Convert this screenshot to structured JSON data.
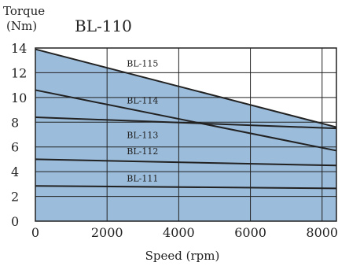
{
  "chart_data": {
    "type": "line",
    "title": "BL-110",
    "ylabel_line1": "Torque",
    "ylabel_line2": "(Nm)",
    "xlabel": "Speed (rpm)",
    "xlim": [
      0,
      8400
    ],
    "ylim": [
      0,
      14
    ],
    "x_ticks": [
      0,
      2000,
      4000,
      6000,
      8000
    ],
    "y_ticks": [
      0,
      2,
      4,
      6,
      8,
      10,
      12,
      14
    ],
    "grid": true,
    "fill_color": "#9bbcdb",
    "line_color": "#222222",
    "series": [
      {
        "name": "BL-115",
        "x": [
          0,
          8400
        ],
        "y": [
          13.9,
          7.6
        ],
        "label_at": [
          2550,
          12.5
        ]
      },
      {
        "name": "BL-114",
        "x": [
          0,
          8400
        ],
        "y": [
          10.6,
          5.7
        ],
        "label_at": [
          2550,
          9.5
        ]
      },
      {
        "name": "BL-113",
        "x": [
          0,
          8400
        ],
        "y": [
          8.4,
          7.5
        ],
        "label_at": [
          2550,
          6.7
        ]
      },
      {
        "name": "BL-112",
        "x": [
          0,
          8400
        ],
        "y": [
          5.0,
          4.5
        ],
        "label_at": [
          2550,
          5.4
        ]
      },
      {
        "name": "BL-111",
        "x": [
          0,
          8400
        ],
        "y": [
          2.85,
          2.65
        ],
        "label_at": [
          2550,
          3.2
        ]
      }
    ]
  }
}
